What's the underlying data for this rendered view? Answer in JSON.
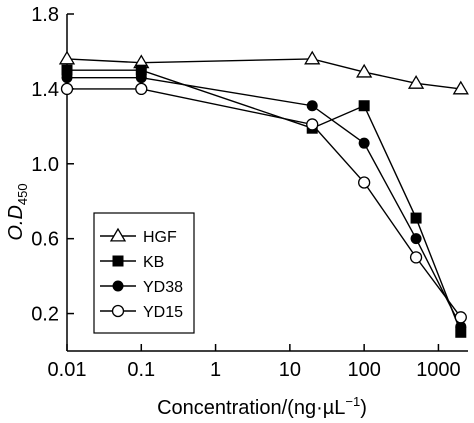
{
  "chart_data": {
    "type": "line",
    "xlabel": "Concentration/(ng·µL",
    "xlabel_sup": "−1",
    "xlabel_close": ")",
    "ylabel_main": "O.D",
    "ylabel_sub": "450",
    "xscale": "log",
    "xlim": [
      0.01,
      2500
    ],
    "ylim": [
      0.0,
      1.8
    ],
    "x_ticks": [
      0.01,
      0.1,
      1,
      10,
      100,
      1000
    ],
    "x_tick_labels": [
      "0.01",
      "0.1",
      "1",
      "10",
      "100",
      "1000"
    ],
    "y_ticks": [
      0.2,
      0.6,
      1.0,
      1.4,
      1.8
    ],
    "y_tick_labels": [
      "0.2",
      "0.6",
      "1.0",
      "1.4",
      "1.8"
    ],
    "grid": false,
    "legend_position": "bottom-left",
    "series": [
      {
        "name": "HGF",
        "marker": "triangle-open",
        "x": [
          0.01,
          0.1,
          20,
          100,
          500,
          2000
        ],
        "y": [
          1.56,
          1.54,
          1.56,
          1.49,
          1.43,
          1.4
        ]
      },
      {
        "name": "KB",
        "marker": "square-filled",
        "x": [
          0.01,
          0.1,
          20,
          100,
          500,
          2000
        ],
        "y": [
          1.5,
          1.5,
          1.19,
          1.31,
          0.71,
          0.1
        ]
      },
      {
        "name": "YD38",
        "marker": "circle-filled",
        "x": [
          0.01,
          0.1,
          20,
          100,
          500,
          2000
        ],
        "y": [
          1.46,
          1.46,
          1.31,
          1.11,
          0.6,
          0.13
        ]
      },
      {
        "name": "YD15",
        "marker": "circle-open",
        "x": [
          0.01,
          0.1,
          20,
          100,
          500,
          2000
        ],
        "y": [
          1.4,
          1.4,
          1.21,
          0.9,
          0.5,
          0.18
        ]
      }
    ]
  }
}
